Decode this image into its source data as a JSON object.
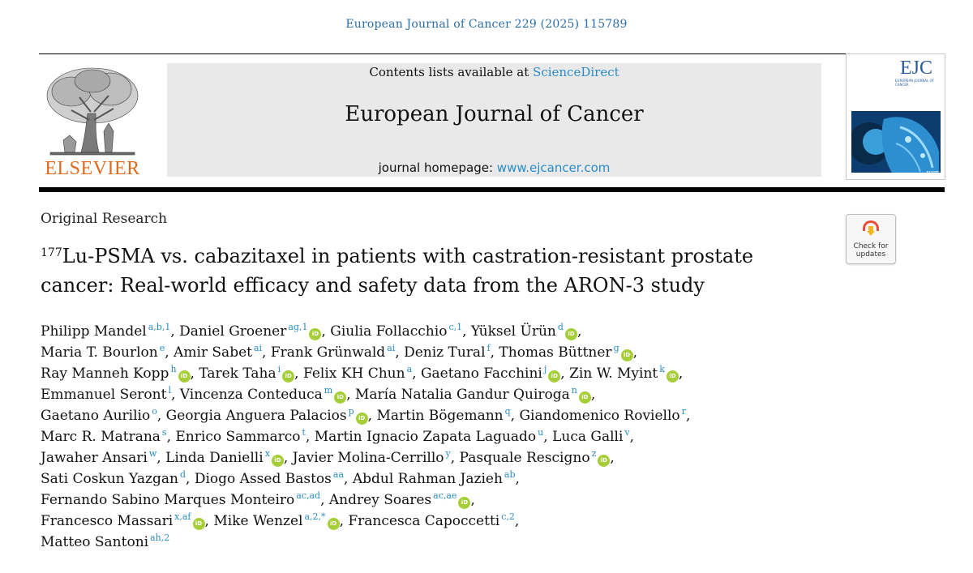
{
  "citation": "European Journal of Cancer 229 (2025) 115789",
  "publisher": "ELSEVIER",
  "banner": {
    "contents_prefix": "Contents lists available at ",
    "contents_link": "ScienceDirect",
    "journal_title": "European Journal of Cancer",
    "homepage_prefix": "journal homepage: ",
    "homepage_url": "www.ejcancer.com"
  },
  "cover": {
    "logo": "EJC",
    "subtitle": "EUROPEAN JOURNAL OF CANCER",
    "badge": "EORTC"
  },
  "crossmark": {
    "line1": "Check for",
    "line2": "updates"
  },
  "article_type": "Original Research",
  "title": {
    "isotope_mass": "177",
    "line1": "Lu-PSMA vs. cabazitaxel in patients with castration-resistant prostate",
    "line2": "cancer: Real-world efficacy and safety data from the ARON-3 study"
  },
  "authors": [
    [
      {
        "name": "Philipp Mandel",
        "aff": "a,b,1",
        "orcid": false
      },
      {
        "name": "Daniel Groener",
        "aff": "ag,1",
        "orcid": true
      },
      {
        "name": "Giulia Follacchio",
        "aff": "c,1",
        "orcid": false
      },
      {
        "name": "Yüksel Ürün",
        "aff": "d",
        "orcid": true,
        "last": true
      }
    ],
    [
      {
        "name": "Maria T. Bourlon",
        "aff": "e",
        "orcid": false
      },
      {
        "name": "Amir Sabet",
        "aff": "ai",
        "orcid": false
      },
      {
        "name": "Frank Grünwald",
        "aff": "ai",
        "orcid": false
      },
      {
        "name": "Deniz Tural",
        "aff": "f",
        "orcid": false
      },
      {
        "name": "Thomas Büttner",
        "aff": "g",
        "orcid": true,
        "last": true
      }
    ],
    [
      {
        "name": "Ray Manneh Kopp",
        "aff": "h",
        "orcid": true
      },
      {
        "name": "Tarek Taha",
        "aff": "i",
        "orcid": true
      },
      {
        "name": "Felix KH Chun",
        "aff": "a",
        "orcid": false
      },
      {
        "name": "Gaetano Facchini",
        "aff": "j",
        "orcid": true
      },
      {
        "name": "Zin W. Myint",
        "aff": "k",
        "orcid": true,
        "last": true
      }
    ],
    [
      {
        "name": "Emmanuel Seront",
        "aff": "l",
        "orcid": false
      },
      {
        "name": "Vincenza Conteduca",
        "aff": "m",
        "orcid": true
      },
      {
        "name": "María Natalia Gandur Quiroga",
        "aff": "n",
        "orcid": true,
        "last": true
      }
    ],
    [
      {
        "name": "Gaetano Aurilio",
        "aff": "o",
        "orcid": false
      },
      {
        "name": "Georgia Anguera Palacios",
        "aff": "p",
        "orcid": true
      },
      {
        "name": "Martin Bögemann",
        "aff": "q",
        "orcid": false
      },
      {
        "name": "Giandomenico Roviello",
        "aff": "r",
        "orcid": false,
        "last": true
      }
    ],
    [
      {
        "name": "Marc R. Matrana",
        "aff": "s",
        "orcid": false
      },
      {
        "name": "Enrico Sammarco",
        "aff": "t",
        "orcid": false
      },
      {
        "name": "Martin Ignacio Zapata Laguado",
        "aff": "u",
        "orcid": false
      },
      {
        "name": "Luca Galli",
        "aff": "v",
        "orcid": false,
        "last": true
      }
    ],
    [
      {
        "name": "Jawaher Ansari",
        "aff": "w",
        "orcid": false
      },
      {
        "name": "Linda Danielli",
        "aff": "x",
        "orcid": true
      },
      {
        "name": "Javier Molina-Cerrillo",
        "aff": "y",
        "orcid": false
      },
      {
        "name": "Pasquale Rescigno",
        "aff": "z",
        "orcid": true,
        "last": true
      }
    ],
    [
      {
        "name": "Sati Coskun Yazgan",
        "aff": "d",
        "orcid": false
      },
      {
        "name": "Diogo Assed Bastos",
        "aff": "aa",
        "orcid": false
      },
      {
        "name": "Abdul Rahman Jazieh",
        "aff": "ab",
        "orcid": false,
        "last": true
      }
    ],
    [
      {
        "name": "Fernando Sabino Marques Monteiro",
        "aff": "ac,ad",
        "orcid": false
      },
      {
        "name": "Andrey Soares",
        "aff": "ac,ae",
        "orcid": true,
        "last": true
      }
    ],
    [
      {
        "name": "Francesco Massari",
        "aff": "x,af",
        "orcid": true
      },
      {
        "name": "Mike Wenzel",
        "aff": "a,2,*",
        "orcid": true
      },
      {
        "name": "Francesca Capoccetti",
        "aff": "c,2",
        "orcid": false,
        "last": true
      }
    ],
    [
      {
        "name": "Matteo Santoni",
        "aff": "ah,2",
        "orcid": false,
        "final": true
      }
    ]
  ],
  "orcid_icon": "iD",
  "colors": {
    "link": "#2a8cc4",
    "elsevier_orange": "#e06a1d",
    "orcid_green": "#a6ce39"
  }
}
